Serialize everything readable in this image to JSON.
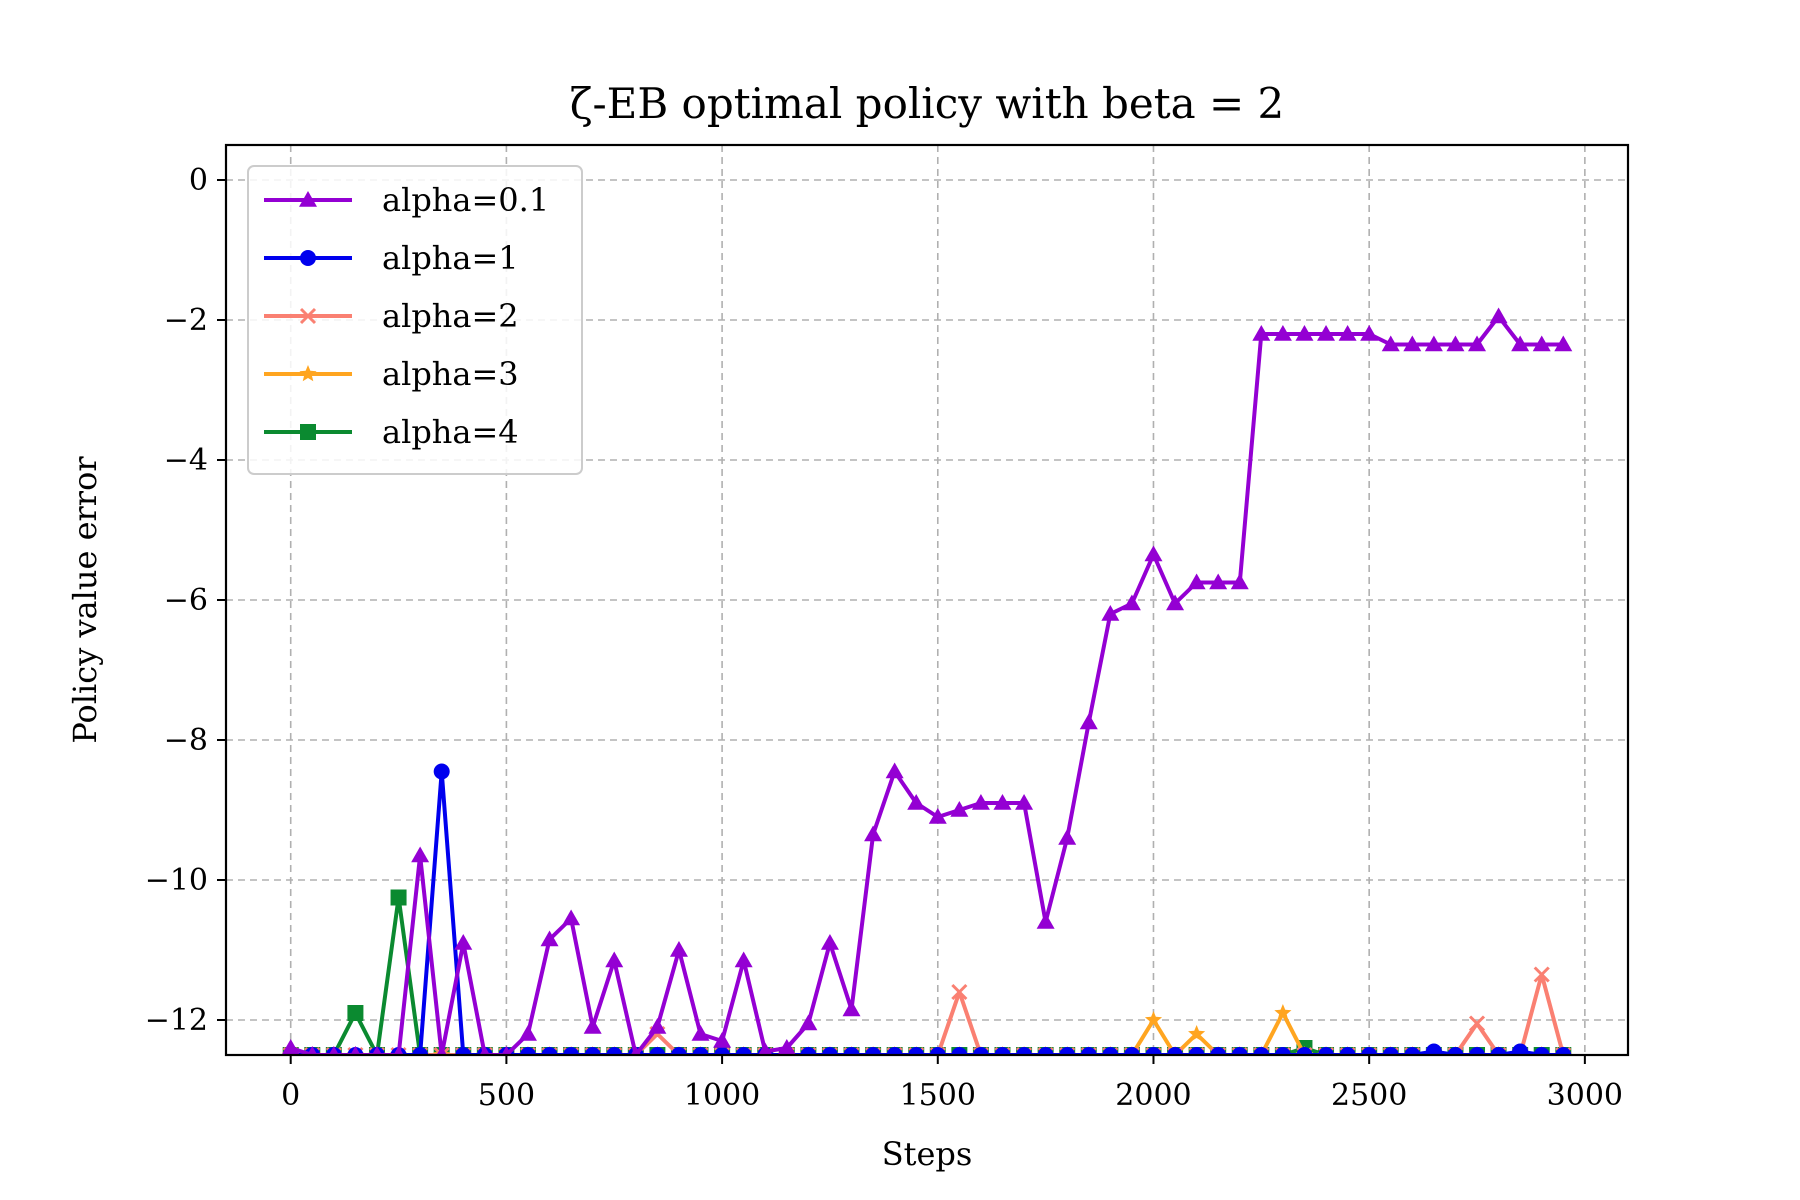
{
  "chart_data": {
    "type": "line",
    "title": "ζ-EB optimal policy with beta = 2",
    "xlabel": "Steps",
    "ylabel": "Policy value error",
    "xlim": [
      -150,
      3100
    ],
    "ylim": [
      -12.5,
      0.5
    ],
    "xticks": [
      0,
      500,
      1000,
      1500,
      2000,
      2500,
      3000
    ],
    "yticks": [
      0,
      -2,
      -4,
      -6,
      -8,
      -10,
      -12
    ],
    "xtick_labels": [
      "0",
      "500",
      "1000",
      "1500",
      "2000",
      "2500",
      "3000"
    ],
    "ytick_labels": [
      "0",
      "−2",
      "−4",
      "−6",
      "−8",
      "−10",
      "−12"
    ],
    "grid": true,
    "legend_position": "top-left",
    "x": [
      0,
      50,
      100,
      150,
      200,
      250,
      300,
      350,
      400,
      450,
      500,
      550,
      600,
      650,
      700,
      750,
      800,
      850,
      900,
      950,
      1000,
      1050,
      1100,
      1150,
      1200,
      1250,
      1300,
      1350,
      1400,
      1450,
      1500,
      1550,
      1600,
      1650,
      1700,
      1750,
      1800,
      1850,
      1900,
      1950,
      2000,
      2050,
      2100,
      2150,
      2200,
      2250,
      2300,
      2350,
      2400,
      2450,
      2500,
      2550,
      2600,
      2650,
      2700,
      2750,
      2800,
      2850,
      2900,
      2950
    ],
    "series": [
      {
        "name": "alpha=0.1",
        "color": "#9400d3",
        "marker": "triangle",
        "values": [
          -12.4,
          -12.5,
          -12.5,
          -12.5,
          -12.5,
          -12.5,
          -9.65,
          -12.5,
          -10.9,
          -12.5,
          -12.5,
          -12.2,
          -10.85,
          -10.55,
          -12.1,
          -11.15,
          -12.5,
          -12.1,
          -11.0,
          -12.2,
          -12.3,
          -11.15,
          -12.45,
          -12.4,
          -12.05,
          -10.9,
          -11.85,
          -9.35,
          -8.45,
          -8.9,
          -9.1,
          -9.0,
          -8.9,
          -8.9,
          -8.9,
          -10.6,
          -9.4,
          -7.75,
          -6.2,
          -6.05,
          -5.35,
          -6.05,
          -5.75,
          -5.75,
          -5.75,
          -2.2,
          -2.2,
          -2.2,
          -2.2,
          -2.2,
          -2.2,
          -2.35,
          -2.35,
          -2.35,
          -2.35,
          -2.35,
          -1.95,
          -2.35,
          -2.35,
          -2.35
        ]
      },
      {
        "name": "alpha=1",
        "color": "#0000ee",
        "marker": "circle",
        "values": [
          -12.5,
          -12.5,
          -12.5,
          -12.5,
          -12.5,
          -12.5,
          -12.5,
          -8.45,
          -12.5,
          -12.5,
          -12.5,
          -12.5,
          -12.5,
          -12.5,
          -12.5,
          -12.5,
          -12.5,
          -12.5,
          -12.5,
          -12.5,
          -12.5,
          -12.5,
          -12.5,
          -12.5,
          -12.5,
          -12.5,
          -12.5,
          -12.5,
          -12.5,
          -12.5,
          -12.5,
          -12.5,
          -12.5,
          -12.5,
          -12.5,
          -12.5,
          -12.5,
          -12.5,
          -12.5,
          -12.5,
          -12.5,
          -12.5,
          -12.5,
          -12.5,
          -12.5,
          -12.5,
          -12.5,
          -12.5,
          -12.5,
          -12.5,
          -12.5,
          -12.5,
          -12.5,
          -12.45,
          -12.5,
          -12.5,
          -12.5,
          -12.45,
          -12.5,
          -12.5
        ]
      },
      {
        "name": "alpha=2",
        "color": "#fa8072",
        "marker": "x",
        "values": [
          -12.5,
          -12.5,
          -12.5,
          -12.5,
          -12.5,
          -12.5,
          -12.5,
          -12.5,
          -12.5,
          -12.5,
          -12.5,
          -12.5,
          -12.5,
          -12.5,
          -12.5,
          -12.5,
          -12.5,
          -12.2,
          -12.5,
          -12.5,
          -12.5,
          -12.5,
          -12.5,
          -12.5,
          -12.5,
          -12.5,
          -12.5,
          -12.5,
          -12.5,
          -12.5,
          -12.5,
          -11.6,
          -12.5,
          -12.5,
          -12.5,
          -12.5,
          -12.5,
          -12.5,
          -12.5,
          -12.5,
          -12.5,
          -12.5,
          -12.5,
          -12.5,
          -12.5,
          -12.5,
          -12.5,
          -12.5,
          -12.5,
          -12.5,
          -12.5,
          -12.5,
          -12.5,
          -12.5,
          -12.5,
          -12.05,
          -12.5,
          -12.5,
          -11.35,
          -12.5
        ]
      },
      {
        "name": "alpha=3",
        "color": "#ffa520",
        "marker": "star",
        "values": [
          -12.5,
          -12.5,
          -12.5,
          -12.5,
          -12.5,
          -12.5,
          -12.5,
          -12.5,
          -12.5,
          -12.5,
          -12.5,
          -12.5,
          -12.5,
          -12.5,
          -12.5,
          -12.5,
          -12.5,
          -12.5,
          -12.5,
          -12.5,
          -12.5,
          -12.5,
          -12.5,
          -12.5,
          -12.5,
          -12.5,
          -12.5,
          -12.5,
          -12.5,
          -12.5,
          -12.5,
          -12.5,
          -12.5,
          -12.5,
          -12.5,
          -12.5,
          -12.5,
          -12.5,
          -12.5,
          -12.5,
          -12.0,
          -12.5,
          -12.2,
          -12.5,
          -12.5,
          -12.5,
          -11.9,
          -12.5,
          -12.5,
          -12.5,
          -12.5,
          -12.5,
          -12.5,
          -12.5,
          -12.5,
          -12.5,
          -12.5,
          -12.5,
          -12.5,
          -12.5
        ]
      },
      {
        "name": "alpha=4",
        "color": "#0b8a30",
        "marker": "square",
        "values": [
          -12.5,
          -12.5,
          -12.5,
          -11.9,
          -12.5,
          -10.25,
          -12.5,
          -12.5,
          -12.5,
          -12.5,
          -12.5,
          -12.5,
          -12.5,
          -12.5,
          -12.5,
          -12.5,
          -12.5,
          -12.5,
          -12.5,
          -12.5,
          -12.5,
          -12.5,
          -12.5,
          -12.5,
          -12.5,
          -12.5,
          -12.5,
          -12.5,
          -12.5,
          -12.5,
          -12.5,
          -12.5,
          -12.5,
          -12.5,
          -12.5,
          -12.5,
          -12.5,
          -12.5,
          -12.5,
          -12.5,
          -12.5,
          -12.5,
          -12.5,
          -12.5,
          -12.5,
          -12.5,
          -12.5,
          -12.4,
          -12.5,
          -12.5,
          -12.5,
          -12.5,
          -12.5,
          -12.5,
          -12.5,
          -12.5,
          -12.5,
          -12.5,
          -12.5,
          -12.5
        ]
      }
    ]
  }
}
